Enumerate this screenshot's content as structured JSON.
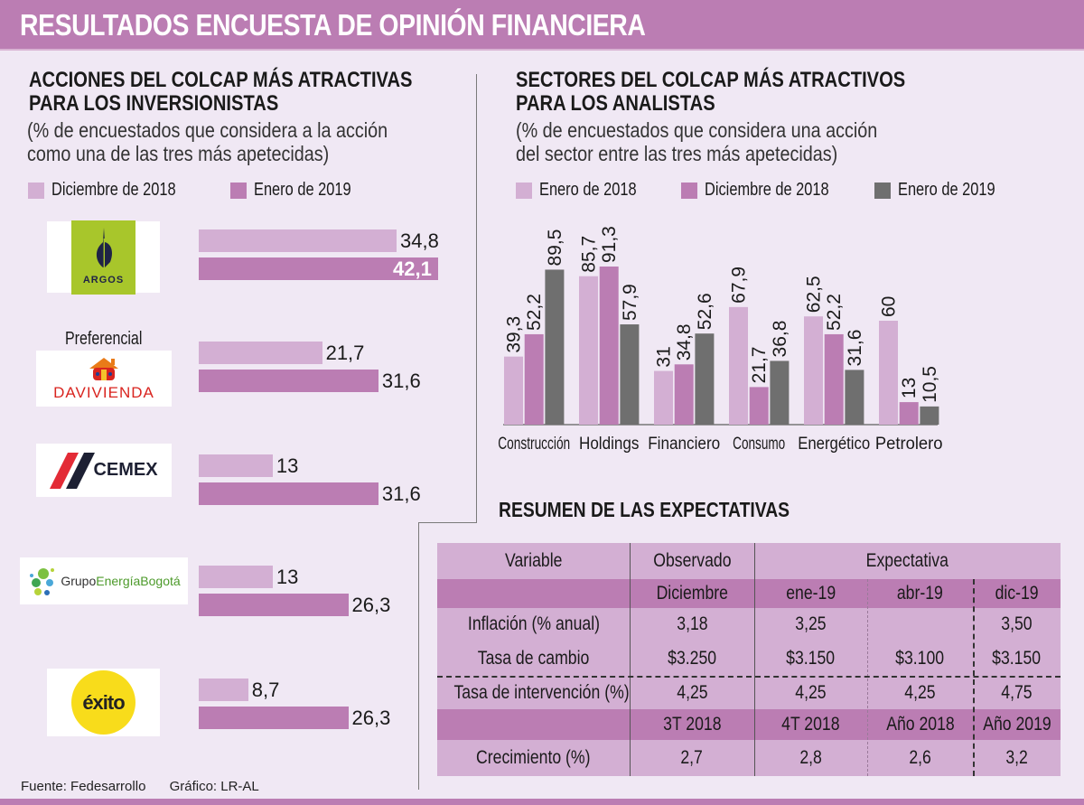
{
  "title": "RESULTADOS ENCUESTA DE OPINIÓN FINANCIERA",
  "colors": {
    "light_purple": "#d3afd3",
    "purple": "#bb7db3",
    "gray": "#6f6f6f",
    "background": "#f0e8f4"
  },
  "left": {
    "title_line1": "ACCIONES DEL COLCAP MÁS ATRACTIVAS",
    "title_line2": "PARA LOS INVERSIONISTAS",
    "subtitle_line1": "(% de encuestados que considera a la acción",
    "subtitle_line2": "como una de las tres más apetecidas)",
    "legend": [
      "Diciembre de 2018",
      "Enero de 2019"
    ],
    "companies": [
      {
        "name": "Argos",
        "logo": "argos-logo",
        "logo_text": "ARGOS",
        "note": "",
        "values": [
          "34,8",
          "42,1"
        ]
      },
      {
        "name": "Davivienda",
        "logo": "davivienda-logo",
        "logo_text": "DAVIVIENDA",
        "note": "Preferencial",
        "values": [
          "21,7",
          "31,6"
        ]
      },
      {
        "name": "Cemex",
        "logo": "cemex-logo",
        "logo_text": "CEMEX",
        "note": "",
        "values": [
          "13",
          "31,6"
        ]
      },
      {
        "name": "Grupo Energía Bogotá",
        "logo": "geb-logo",
        "logo_text_a": "Grupo",
        "logo_text_b": "EnergíaBogotá",
        "note": "",
        "values": [
          "13",
          "26,3"
        ]
      },
      {
        "name": "Éxito",
        "logo": "exito-logo",
        "logo_text": "éxito",
        "note": "",
        "values": [
          "8,7",
          "26,3"
        ]
      }
    ]
  },
  "right": {
    "title_line1": "SECTORES DEL COLCAP MÁS ATRACTIVOS",
    "title_line2": "PARA LOS ANALISTAS",
    "subtitle_line1": "(% de encuestados que considera una acción",
    "subtitle_line2": "del sector entre las tres más apetecidas)",
    "legend": [
      "Enero de 2018",
      "Diciembre de 2018",
      "Enero de 2019"
    ]
  },
  "chart_data": [
    {
      "type": "bar",
      "orientation": "horizontal",
      "title": "ACCIONES DEL COLCAP MÁS ATRACTIVAS PARA LOS INVERSIONISTAS",
      "subtitle": "(% de encuestados que considera a la acción como una de las tres más apetecidas)",
      "categories": [
        "Argos",
        "Davivienda (Preferencial)",
        "Cemex",
        "Grupo Energía Bogotá",
        "Éxito"
      ],
      "series": [
        {
          "name": "Diciembre de 2018",
          "values": [
            34.8,
            21.7,
            13,
            13,
            8.7
          ]
        },
        {
          "name": "Enero de 2019",
          "values": [
            42.1,
            31.6,
            31.6,
            26.3,
            26.3
          ]
        }
      ],
      "legend": "top-left",
      "grid": false
    },
    {
      "type": "bar",
      "orientation": "vertical",
      "title": "SECTORES DEL COLCAP MÁS ATRACTIVOS PARA LOS ANALISTAS",
      "subtitle": "(% de encuestados que considera una acción del sector entre las tres más apetecidas)",
      "categories": [
        "Construcción",
        "Holdings",
        "Financiero",
        "Consumo",
        "Energético",
        "Petrolero"
      ],
      "series": [
        {
          "name": "Enero de 2018",
          "values": [
            39.3,
            85.7,
            31,
            67.9,
            62.5,
            60
          ],
          "labels": [
            "39,3",
            "85,7",
            "31",
            "67,9",
            "62,5",
            "60"
          ]
        },
        {
          "name": "Diciembre de 2018",
          "values": [
            52.2,
            91.3,
            34.8,
            21.7,
            52.2,
            13
          ],
          "labels": [
            "52,2",
            "91,3",
            "34,8",
            "21,7",
            "52,2",
            "13"
          ]
        },
        {
          "name": "Enero de 2019",
          "values": [
            89.5,
            57.9,
            52.6,
            36.8,
            31.6,
            10.5
          ],
          "labels": [
            "89,5",
            "57,9",
            "52,6",
            "36,8",
            "31,6",
            "10,5"
          ]
        }
      ],
      "ylim": [
        0,
        100
      ],
      "legend": "top-left",
      "grid": false
    }
  ],
  "table": {
    "title": "RESUMEN DE LAS EXPECTATIVAS",
    "header": {
      "variable": "Variable",
      "observado": "Observado",
      "expectativa": "Expectativa"
    },
    "sub_header_1": [
      "",
      "Diciembre",
      "ene-19",
      "abr-19",
      "dic-19"
    ],
    "rows_1": [
      [
        "Inflación (% anual)",
        "3,18",
        "3,25",
        "",
        "3,50"
      ],
      [
        "Tasa de cambio",
        "$3.250",
        "$3.150",
        "$3.100",
        "$3.150"
      ],
      [
        "Tasa de intervención (%)",
        "4,25",
        "4,25",
        "4,25",
        "4,75"
      ]
    ],
    "sub_header_2": [
      "",
      "3T 2018",
      "4T 2018",
      "Año 2018",
      "Año 2019"
    ],
    "rows_2": [
      [
        "Crecimiento (%)",
        "2,7",
        "2,8",
        "2,6",
        "3,2"
      ]
    ]
  },
  "footer": {
    "source": "Fuente: Fedesarrollo",
    "credit": "Gráfico: LR-AL"
  }
}
